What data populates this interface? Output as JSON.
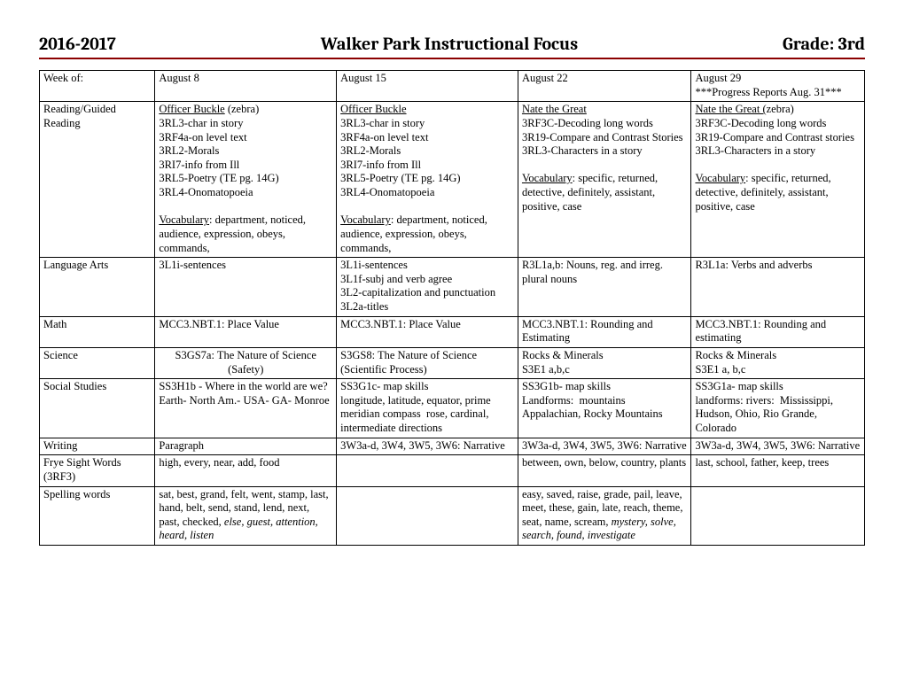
{
  "header": {
    "left": "2016-2017",
    "center": "Walker Park Instructional Focus",
    "right": "Grade: 3rd"
  },
  "table": {
    "row_header": {
      "c0": "Week of:",
      "c1": "August 8",
      "c2": "August 15",
      "c3": "August 22",
      "c4_line1": "August 29",
      "c4_line2": "***Progress Reports Aug. 31***"
    },
    "reading": {
      "label_l1": "Reading/Guided",
      "label_l2": "Reading",
      "w1_title_u": "Officer Buckle",
      "w1_title_rest": " (zebra)",
      "w1_l1": "3RL3-char in story",
      "w1_l2": "3RF4a-on level text",
      "w1_l3": "3RL2-Morals",
      "w1_l4": "3RI7-info from Ill",
      "w1_l5": "3RL5-Poetry (TE pg. 14G)",
      "w1_l6": "3RL4-Onomatopoeia",
      "w1_vocab_u": "Vocabulary",
      "w1_vocab_rest": ":  department, noticed, audience, expression, obeys, commands,",
      "w2_title_u": "Officer Buckle ",
      "w2_l1": "3RL3-char in story",
      "w2_l2": "3RF4a-on level text",
      "w2_l3": "3RL2-Morals",
      "w2_l4": "3RI7-info from Ill",
      "w2_l5": "3RL5-Poetry (TE pg. 14G)",
      "w2_l6": "3RL4-Onomatopoeia",
      "w2_vocab_u": "Vocabulary",
      "w2_vocab_rest": ":  department, noticed, audience, expression, obeys, commands,",
      "w3_title_u": "Nate the Great",
      "w3_l1": "3RF3C-Decoding long words",
      "w3_l2": "3R19-Compare and Contrast Stories",
      "w3_l3": "3RL3-Characters in a story",
      "w3_vocab_u": "Vocabulary",
      "w3_vocab_rest": ":  specific, returned, detective, definitely, assistant, positive, case",
      "w4_title_u": "Nate the Great (",
      "w4_title_rest": "zebra)",
      "w4_l1": "3RF3C-Decoding long words",
      "w4_l2": "3R19-Compare and Contrast stories",
      "w4_l3": "3RL3-Characters in a story",
      "w4_vocab_u": "Vocabulary",
      "w4_vocab_rest": ":  specific, returned, detective, definitely, assistant, positive, case"
    },
    "langarts": {
      "label": "Language Arts",
      "w1": "3L1i-sentences",
      "w2_l1": "3L1i-sentences",
      "w2_l2": "3L1f-subj and verb agree",
      "w2_l3": "3L2-capitalization and punctuation",
      "w2_l4": "3L2a-titles",
      "w3_l1": "R3L1a,b:  Nouns, reg. and irreg.",
      "w3_l2": "plural nouns",
      "w4": " R3L1a:  Verbs and adverbs"
    },
    "math": {
      "label": "Math",
      "w1": "MCC3.NBT.1:  Place Value",
      "w2": "MCC3.NBT.1:  Place Value",
      "w3_l1": "MCC3.NBT.1:  Rounding and",
      "w3_l2": "Estimating",
      "w4_l1": "MCC3.NBT.1:  Rounding and",
      "w4_l2": "estimating"
    },
    "science": {
      "label": "Science",
      "w1_l1": "S3GS7a:  The Nature of Science",
      "w1_l2": "(Safety)",
      "w2_l1": "S3GS8:  The Nature of Science",
      "w2_l2": "(Scientific Process)",
      "w3_l1": " Rocks & Minerals",
      "w3_l2": "S3E1 a,b,c",
      "w4_l1": "Rocks & Minerals",
      "w4_l2": "S3E1 a, b,c"
    },
    "social": {
      "label": "Social Studies",
      "w1": "SS3H1b - Where in the world are we?  Earth- North Am.- USA- GA- Monroe",
      "w2": "SS3G1c- map skills\nlongitude, latitude, equator, prime meridian compass  rose, cardinal, intermediate directions",
      "w3": "SS3G1b- map skills\nLandforms:  mountains\nAppalachian, Rocky Mountains",
      "w4": "SS3G1a- map skills\nlandforms: rivers:  Mississippi, Hudson, Ohio, Rio Grande, Colorado"
    },
    "writing": {
      "label": "Writing",
      "w1": "Paragraph",
      "w2": "3W3a-d, 3W4, 3W5, 3W6:  Narrative",
      "w3": "3W3a-d, 3W4, 3W5, 3W6:  Narrative",
      "w4": "3W3a-d, 3W4, 3W5, 3W6:  Narrative"
    },
    "frye": {
      "label_l1": "Frye Sight Words",
      "label_l2": " (3RF3)",
      "w1": "high, every, near, add, food",
      "w2": "",
      "w3": "between, own, below, country, plants",
      "w4": "last, school, father, keep, trees"
    },
    "spelling": {
      "label": "Spelling words",
      "w1_plain": "sat, best, grand, felt, went, stamp, last, hand, belt, send, stand, lend, next, past, checked, ",
      "w1_italic": "else, guest, attention, heard, listen",
      "w2": "",
      "w3_plain": "easy, saved, raise, grade, pail, leave, meet, these, gain, late, reach, theme, seat, name, scream, ",
      "w3_italic": "mystery, solve, search, found, investigate",
      "w4": ""
    }
  }
}
